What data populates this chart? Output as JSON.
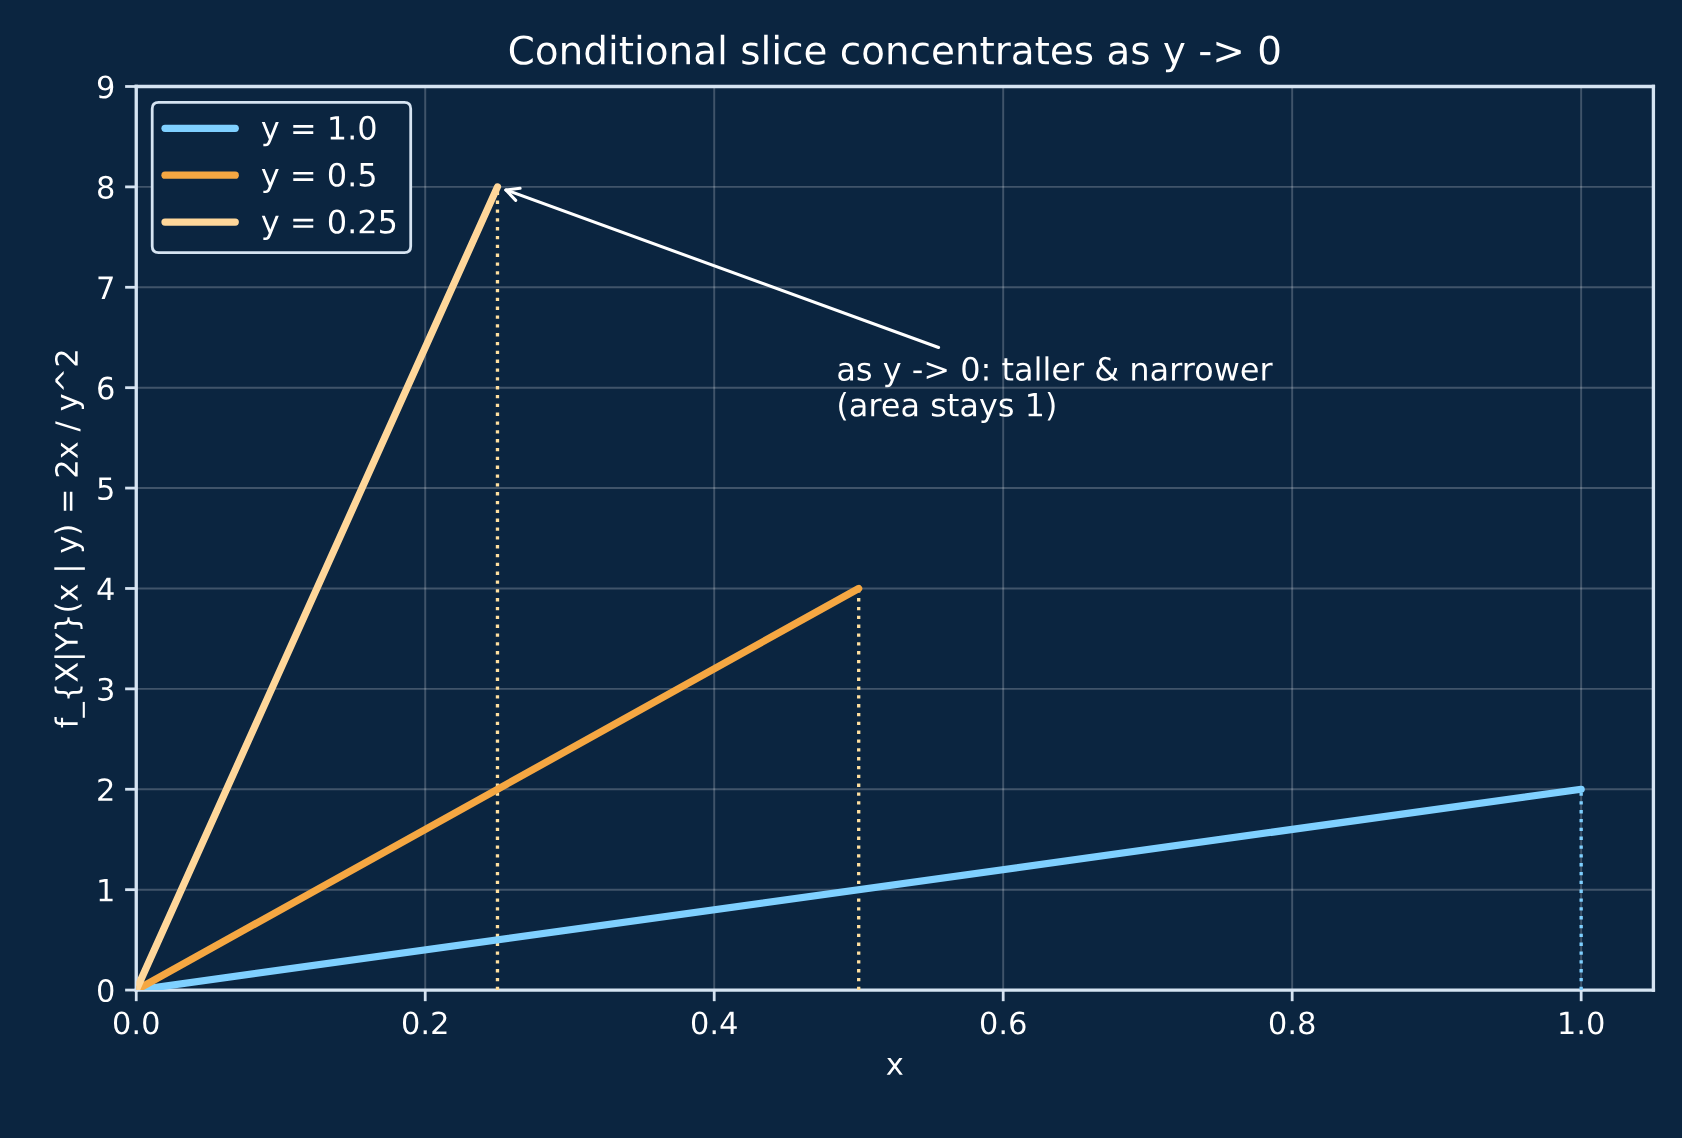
{
  "chart_data": {
    "type": "line",
    "title": "Conditional slice concentrates as y -> 0",
    "xlabel": "x",
    "ylabel": "f_{X|Y}(x | y) = 2x / y^2",
    "series": [
      {
        "name": "y = 1.0",
        "color": "#7fd0ff",
        "x": [
          0,
          1.0
        ],
        "values": [
          0,
          2
        ]
      },
      {
        "name": "y = 0.5",
        "color": "#f5a742",
        "x": [
          0,
          0.5
        ],
        "values": [
          0,
          4
        ]
      },
      {
        "name": "y = 0.25",
        "color": "#ffd79a",
        "x": [
          0,
          0.25
        ],
        "values": [
          0,
          8
        ]
      },
      {
        "color": "#7fd0ff",
        "x": [
          1.0,
          1.0
        ],
        "values": [
          0,
          2
        ],
        "line_style": "dotted"
      },
      {
        "color": "#ffe0a0",
        "x": [
          0.5,
          0.5
        ],
        "values": [
          0,
          4
        ],
        "line_style": "dotted"
      },
      {
        "color": "#ffe0a0",
        "x": [
          0.25,
          0.25
        ],
        "values": [
          0,
          8
        ],
        "line_style": "dotted"
      }
    ],
    "annotations": [
      {
        "text": "as y -> 0: taller & narrower\n(area stays 1)",
        "x": 0.25,
        "y": 8
      }
    ],
    "xlim": [
      0,
      1.05
    ],
    "xticks": [
      {
        "value": 0,
        "label": "0.0"
      },
      0.2,
      0.4,
      0.6,
      0.8,
      {
        "value": 1.0,
        "label": "1.0"
      }
    ],
    "ylim": [
      0,
      9
    ],
    "yticks": [
      0,
      1,
      2,
      3,
      4,
      5,
      6,
      7,
      8,
      9
    ],
    "grid": true,
    "legend": "top left"
  }
}
